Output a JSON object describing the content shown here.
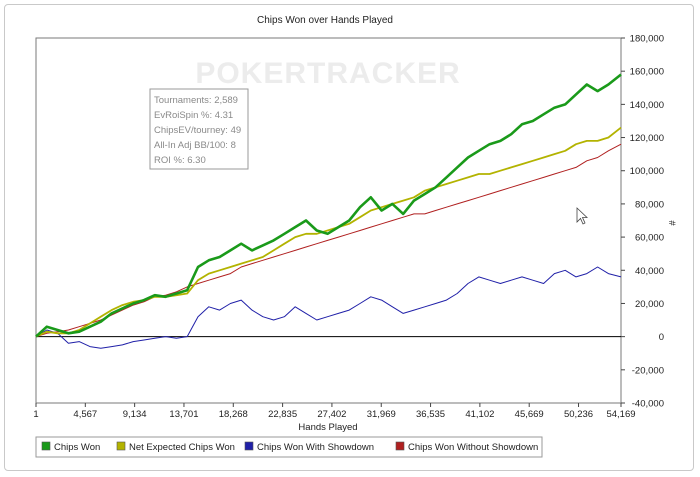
{
  "watermark": "POKERTRACKER",
  "stats_box": [
    "Tournaments: 2,589",
    "EvRoiSpin %: 4.31",
    "ChipsEV/tourney: 49",
    "All-In Adj BB/100: 8",
    "ROI %: 6.30"
  ],
  "colors": {
    "chips_won": "#1a9a1a",
    "net_expected": "#b3b300",
    "with_showdown": "#2020a8",
    "without_showdown": "#b02020"
  },
  "chart_data": {
    "type": "line",
    "title": "Chips Won over Hands Played",
    "xlabel": "Hands Played",
    "ylabel": "#",
    "xlim": [
      1,
      54169
    ],
    "ylim": [
      -40000,
      180000
    ],
    "x_ticks": [
      1,
      4567,
      9134,
      13701,
      18268,
      22835,
      27402,
      31969,
      36535,
      41102,
      45669,
      50236,
      54169
    ],
    "x_tick_labels": [
      "1",
      "4,567",
      "9,134",
      "13,701",
      "18,268",
      "22,835",
      "27,402",
      "31,969",
      "36,535",
      "41,102",
      "45,669",
      "50,236",
      "54,169"
    ],
    "y_ticks": [
      -40000,
      -20000,
      0,
      20000,
      40000,
      60000,
      80000,
      100000,
      120000,
      140000,
      160000,
      180000
    ],
    "y_tick_labels": [
      "-40,000",
      "-20,000",
      "0",
      "20,000",
      "40,000",
      "60,000",
      "80,000",
      "100,000",
      "120,000",
      "140,000",
      "160,000",
      "180,000"
    ],
    "legend_position": "bottom",
    "grid": false,
    "x": [
      0,
      1000,
      2000,
      3000,
      4000,
      5000,
      6000,
      7000,
      8000,
      9000,
      10000,
      11000,
      12000,
      13000,
      14000,
      15000,
      16000,
      17000,
      18000,
      19000,
      20000,
      21000,
      22000,
      23000,
      24000,
      25000,
      26000,
      27000,
      28000,
      29000,
      30000,
      31000,
      32000,
      33000,
      34000,
      35000,
      36000,
      37000,
      38000,
      39000,
      40000,
      41000,
      42000,
      43000,
      44000,
      45000,
      46000,
      47000,
      48000,
      49000,
      50000,
      51000,
      52000,
      53000,
      54169
    ],
    "series": [
      {
        "name": "Chips Won",
        "color_key": "chips_won",
        "values": [
          0,
          6000,
          4000,
          2000,
          3000,
          6000,
          9000,
          14000,
          17000,
          20000,
          22000,
          25000,
          24000,
          26000,
          28000,
          42000,
          46000,
          48000,
          52000,
          56000,
          52000,
          55000,
          58000,
          62000,
          66000,
          70000,
          64000,
          62000,
          66000,
          70000,
          78000,
          84000,
          76000,
          80000,
          74000,
          82000,
          86000,
          90000,
          96000,
          102000,
          108000,
          112000,
          116000,
          118000,
          122000,
          128000,
          130000,
          134000,
          138000,
          140000,
          146000,
          152000,
          148000,
          152000,
          158000
        ]
      },
      {
        "name": "Net Expected Chips Won",
        "color_key": "net_expected",
        "values": [
          0,
          3000,
          2000,
          2000,
          4000,
          8000,
          12000,
          16000,
          19000,
          21000,
          22000,
          24000,
          24000,
          25000,
          26000,
          34000,
          38000,
          40000,
          42000,
          44000,
          46000,
          48000,
          52000,
          56000,
          60000,
          62000,
          62000,
          64000,
          66000,
          68000,
          72000,
          76000,
          78000,
          80000,
          82000,
          84000,
          88000,
          90000,
          92000,
          94000,
          96000,
          98000,
          98000,
          100000,
          102000,
          104000,
          106000,
          108000,
          110000,
          112000,
          116000,
          118000,
          118000,
          120000,
          126000
        ]
      },
      {
        "name": "Chips Won With Showdown",
        "color_key": "with_showdown",
        "values": [
          0,
          4000,
          2000,
          -4000,
          -3000,
          -6000,
          -7000,
          -6000,
          -5000,
          -3000,
          -2000,
          -1000,
          0,
          -1000,
          0,
          12000,
          18000,
          16000,
          20000,
          22000,
          16000,
          12000,
          10000,
          12000,
          18000,
          14000,
          10000,
          12000,
          14000,
          16000,
          20000,
          24000,
          22000,
          18000,
          14000,
          16000,
          18000,
          20000,
          22000,
          26000,
          32000,
          36000,
          34000,
          32000,
          34000,
          36000,
          34000,
          32000,
          38000,
          40000,
          36000,
          38000,
          42000,
          38000,
          36000
        ]
      },
      {
        "name": "Chips Won Without Showdown",
        "color_key": "without_showdown",
        "values": [
          0,
          2000,
          3000,
          4000,
          6000,
          8000,
          10000,
          13000,
          16000,
          19000,
          21000,
          24000,
          25000,
          27000,
          30000,
          32000,
          34000,
          36000,
          38000,
          42000,
          44000,
          46000,
          48000,
          50000,
          52000,
          54000,
          56000,
          58000,
          60000,
          62000,
          64000,
          66000,
          68000,
          70000,
          72000,
          74000,
          74000,
          76000,
          78000,
          80000,
          82000,
          84000,
          86000,
          88000,
          90000,
          92000,
          94000,
          96000,
          98000,
          100000,
          102000,
          106000,
          108000,
          112000,
          116000
        ]
      }
    ]
  }
}
